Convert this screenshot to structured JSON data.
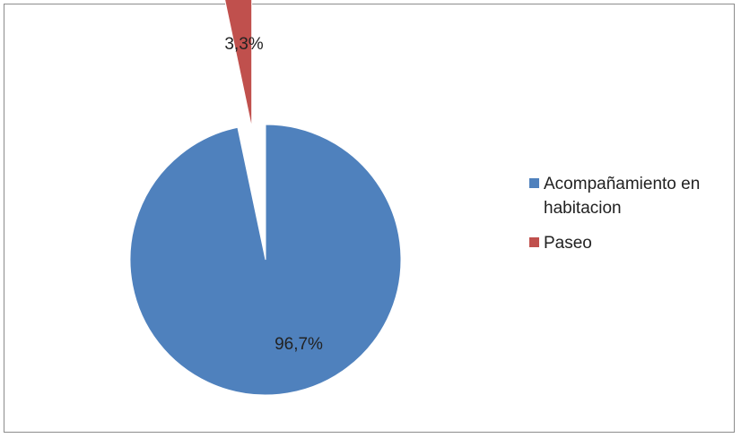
{
  "chart_data": {
    "type": "pie",
    "title": "",
    "legend_position": "right",
    "slices": [
      {
        "name": "Acompañamiento en habitacion",
        "legend_lines": [
          "Acompañamiento en",
          "habitacion"
        ],
        "value": 96.7,
        "label": "96,7%",
        "color": "#4f81bd"
      },
      {
        "name": "Paseo",
        "legend_lines": [
          "Paseo"
        ],
        "value": 3.3,
        "label": "3,3%",
        "color": "#c0504d",
        "exploded": true
      }
    ]
  }
}
